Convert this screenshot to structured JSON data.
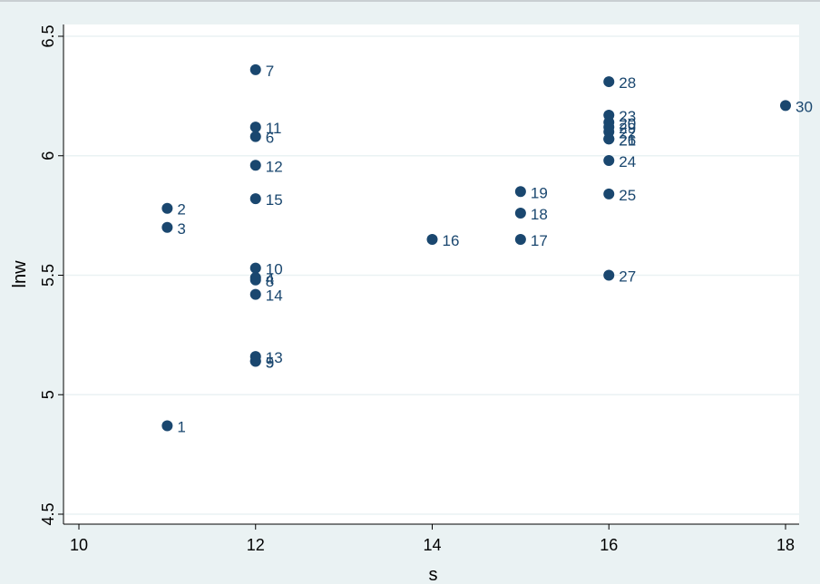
{
  "chart_data": {
    "type": "scatter",
    "title": "",
    "xlabel": "s",
    "ylabel": "lnw",
    "xlim": [
      10,
      18
    ],
    "ylim": [
      4.5,
      6.5
    ],
    "x_ticks": [
      10,
      12,
      14,
      16,
      18
    ],
    "y_ticks": [
      4.5,
      5,
      5.5,
      6,
      6.5
    ],
    "grid": "horizontal",
    "marker_color": "#1a476f",
    "plot_background": "#ffffff",
    "outer_background": "#eaf2f3",
    "grid_color": "#eaf2f3",
    "points": [
      {
        "x": 11,
        "y": 4.87,
        "label": "1"
      },
      {
        "x": 11,
        "y": 5.78,
        "label": "2"
      },
      {
        "x": 11,
        "y": 5.7,
        "label": "3"
      },
      {
        "x": 12,
        "y": 5.49,
        "label": "4"
      },
      {
        "x": 12,
        "y": 5.14,
        "label": "5"
      },
      {
        "x": 12,
        "y": 6.08,
        "label": "6"
      },
      {
        "x": 12,
        "y": 6.36,
        "label": "7"
      },
      {
        "x": 12,
        "y": 5.48,
        "label": "8"
      },
      {
        "x": 12,
        "y": 5.14,
        "label": "9"
      },
      {
        "x": 12,
        "y": 5.53,
        "label": "10"
      },
      {
        "x": 12,
        "y": 6.12,
        "label": "11"
      },
      {
        "x": 12,
        "y": 5.96,
        "label": "12"
      },
      {
        "x": 12,
        "y": 5.16,
        "label": "13"
      },
      {
        "x": 12,
        "y": 5.42,
        "label": "14"
      },
      {
        "x": 12,
        "y": 5.82,
        "label": "15"
      },
      {
        "x": 14,
        "y": 5.65,
        "label": "16"
      },
      {
        "x": 15,
        "y": 5.65,
        "label": "17"
      },
      {
        "x": 15,
        "y": 5.76,
        "label": "18"
      },
      {
        "x": 15,
        "y": 5.85,
        "label": "19"
      },
      {
        "x": 16,
        "y": 6.14,
        "label": "20"
      },
      {
        "x": 16,
        "y": 6.07,
        "label": "21"
      },
      {
        "x": 16,
        "y": 6.1,
        "label": "22"
      },
      {
        "x": 16,
        "y": 6.17,
        "label": "23"
      },
      {
        "x": 16,
        "y": 5.98,
        "label": "24"
      },
      {
        "x": 16,
        "y": 5.84,
        "label": "25"
      },
      {
        "x": 16,
        "y": 6.07,
        "label": "26"
      },
      {
        "x": 16,
        "y": 5.5,
        "label": "27"
      },
      {
        "x": 16,
        "y": 6.31,
        "label": "28"
      },
      {
        "x": 16,
        "y": 6.12,
        "label": "29"
      },
      {
        "x": 18,
        "y": 6.21,
        "label": "30"
      }
    ]
  }
}
